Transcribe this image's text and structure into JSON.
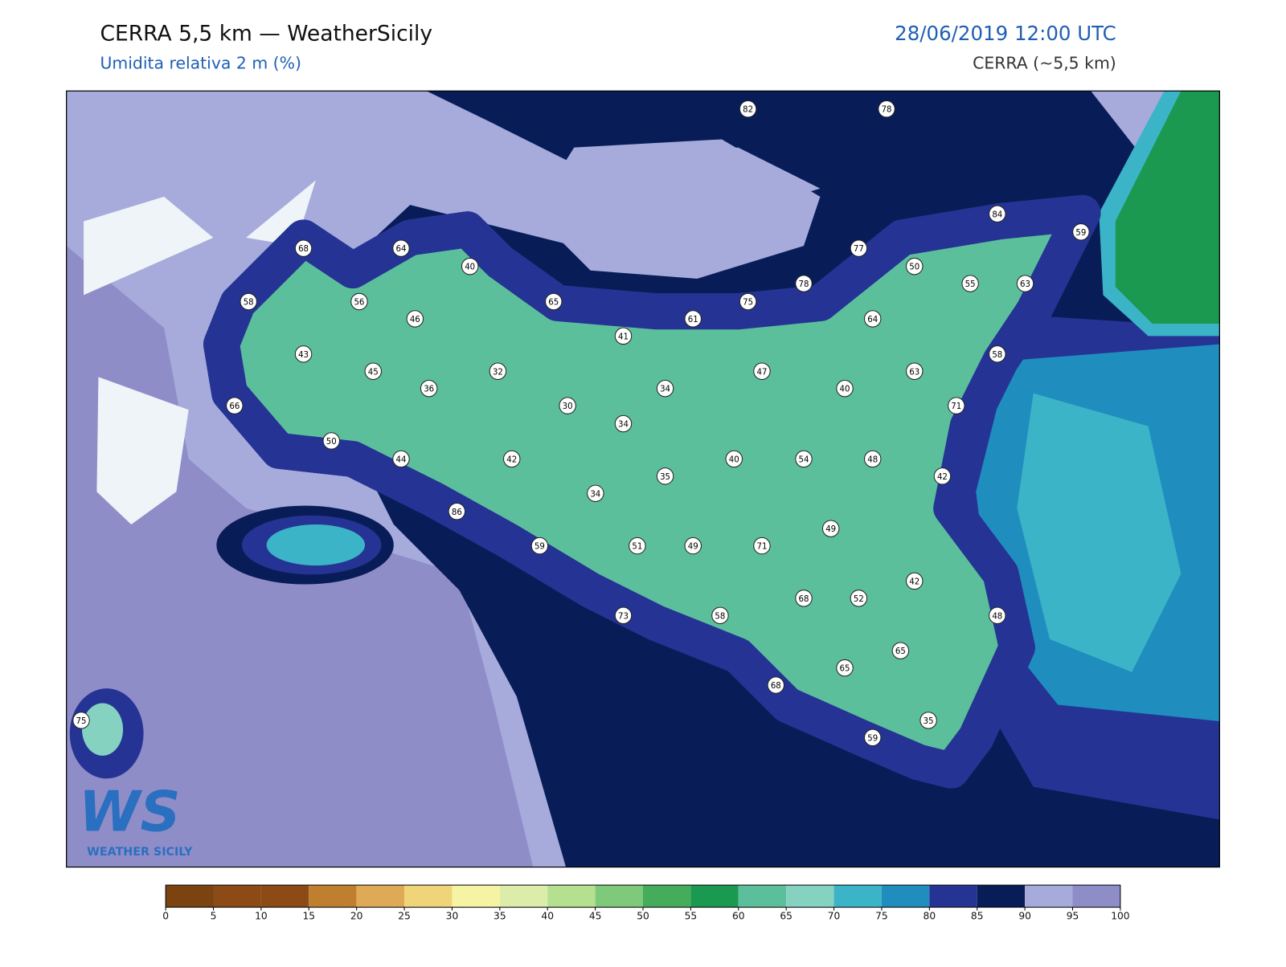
{
  "header": {
    "title": "CERRA 5,5 km — WeatherSicily",
    "subtitle": "Umidita relativa 2 m (%)",
    "datetime": "28/06/2019 12:00 UTC",
    "model": "CERRA (~5,5 km)"
  },
  "stations": [
    82,
    78,
    68,
    64,
    40,
    58,
    56,
    46,
    65,
    61,
    75,
    78,
    77,
    50,
    55,
    63,
    84,
    59,
    41,
    64,
    43,
    45,
    32,
    36,
    30,
    34,
    34,
    47,
    40,
    63,
    58,
    71,
    66,
    50,
    44,
    42,
    40,
    54,
    48,
    42,
    35,
    34,
    86,
    59,
    51,
    49,
    71,
    49,
    42,
    68,
    52,
    73,
    58,
    48,
    65,
    65,
    68,
    35,
    59,
    75
  ],
  "colorbar": {
    "ticks": [
      0,
      5,
      10,
      15,
      20,
      25,
      30,
      35,
      40,
      45,
      50,
      55,
      60,
      65,
      70,
      75,
      80,
      85,
      90,
      95,
      100
    ],
    "colors": [
      "#7a4310",
      "#8c4b16",
      "#8c4b16",
      "#c07f2f",
      "#dfaa55",
      "#f0d47a",
      "#f7f3a4",
      "#dcedaa",
      "#b4e08f",
      "#7fc97a",
      "#45ac5c",
      "#1b9950",
      "#5cbf9b",
      "#86d2c1",
      "#3cb4c8",
      "#1f8ebf",
      "#253494",
      "#081d58",
      "#a6abdc",
      "#8f8dc8"
    ]
  },
  "logo": {
    "mark": "WS",
    "caption": "WEATHER SICILY"
  }
}
